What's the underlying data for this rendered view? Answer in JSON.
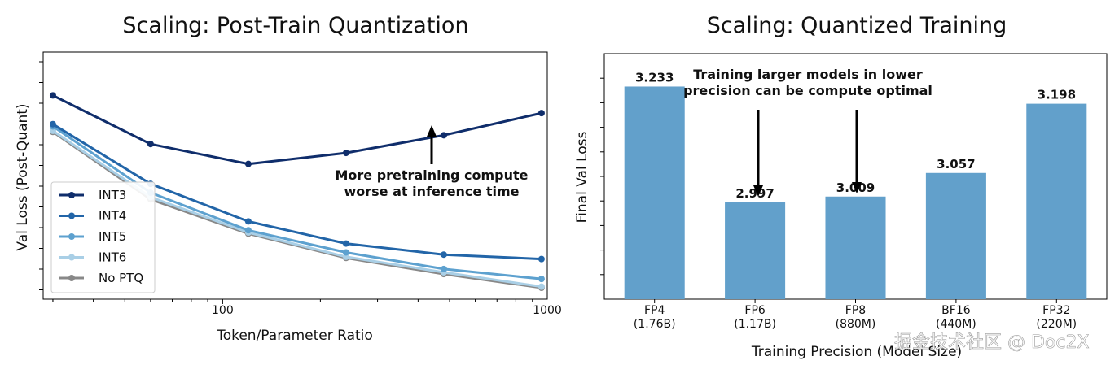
{
  "chart_data": [
    {
      "type": "line",
      "title": "Scaling: Post-Train Quantization",
      "xlabel": "Token/Parameter Ratio",
      "ylabel": "Val Loss (Post-Quant)",
      "xscale": "log",
      "xlim": [
        28,
        1000
      ],
      "ylim": [
        0,
        10
      ],
      "x_tick_labels": [
        "100",
        "1000"
      ],
      "x": [
        30,
        60,
        120,
        240,
        480,
        960
      ],
      "series": [
        {
          "name": "INT3",
          "color": "#0f2d6b",
          "values": [
            8.7,
            6.5,
            5.6,
            6.1,
            6.9,
            7.9
          ]
        },
        {
          "name": "INT4",
          "color": "#2265a8",
          "values": [
            7.4,
            4.7,
            3.0,
            2.0,
            1.5,
            1.3
          ]
        },
        {
          "name": "INT5",
          "color": "#5da1cf",
          "values": [
            7.3,
            4.3,
            2.6,
            1.6,
            0.85,
            0.4
          ]
        },
        {
          "name": "INT6",
          "color": "#a9cfe6",
          "values": [
            7.1,
            4.1,
            2.5,
            1.4,
            0.7,
            0.05
          ]
        },
        {
          "name": "No PTQ",
          "color": "#888888",
          "values": [
            7.05,
            4.0,
            2.45,
            1.35,
            0.62,
            0.0
          ]
        }
      ],
      "legend": "lower-left",
      "annotation": {
        "lines": [
          "More pretraining compute",
          "worse at inference time"
        ]
      }
    },
    {
      "type": "bar",
      "title": "Scaling: Quantized Training",
      "xlabel": "Training Precision (Model Size)",
      "ylabel": "Final Val Loss",
      "ylim": [
        2.8,
        3.3
      ],
      "categories": [
        {
          "name": "FP4",
          "size": "(1.76B)"
        },
        {
          "name": "FP6",
          "size": "(1.17B)"
        },
        {
          "name": "FP8",
          "size": "(880M)"
        },
        {
          "name": "BF16",
          "size": "(440M)"
        },
        {
          "name": "FP32",
          "size": "(220M)"
        }
      ],
      "values": [
        3.233,
        2.997,
        3.009,
        3.057,
        3.198
      ],
      "value_labels": [
        "3.233",
        "2.997",
        "3.009",
        "3.057",
        "3.198"
      ],
      "bar_color": "#62a0cb",
      "annotation": {
        "lines": [
          "Training larger models in lower",
          "precision can be compute optimal"
        ]
      }
    }
  ],
  "watermark": "掘金技术社区 @ Doc2X"
}
